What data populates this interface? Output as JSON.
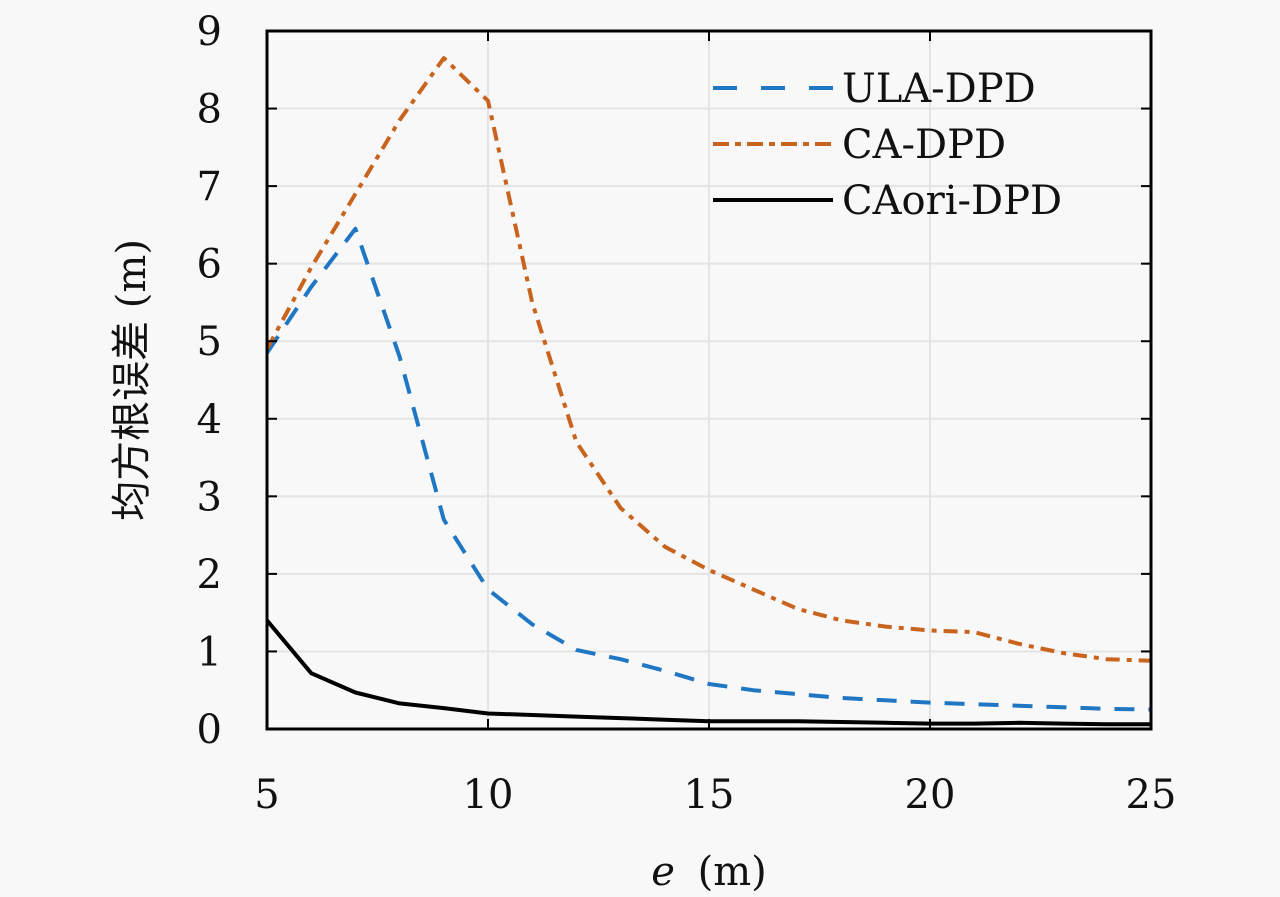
{
  "chart_data": {
    "type": "line",
    "title": "",
    "xlabel_italic": "e",
    "xlabel_unit": "(m)",
    "ylabel": "均方根误差 (m)",
    "xlim": [
      5,
      25
    ],
    "ylim": [
      0,
      9
    ],
    "xticks": [
      5,
      10,
      15,
      20,
      25
    ],
    "yticks": [
      0,
      1,
      2,
      3,
      4,
      5,
      6,
      7,
      8,
      9
    ],
    "grid": true,
    "legend_position": "top-right",
    "x": [
      5,
      6,
      7,
      8,
      9,
      10,
      11,
      12,
      13,
      14,
      15,
      16,
      17,
      18,
      19,
      20,
      21,
      22,
      23,
      24,
      25
    ],
    "series": [
      {
        "name": "ULA-DPD",
        "style": "dashed",
        "color": "#1f77c4",
        "values": [
          4.85,
          5.7,
          6.45,
          4.8,
          2.7,
          1.8,
          1.35,
          1.02,
          0.9,
          0.75,
          0.58,
          0.5,
          0.45,
          0.4,
          0.37,
          0.34,
          0.32,
          0.3,
          0.28,
          0.26,
          0.25
        ]
      },
      {
        "name": "CA-DPD",
        "style": "dashdot",
        "color": "#c8641e",
        "values": [
          4.9,
          5.95,
          6.9,
          7.85,
          8.65,
          8.1,
          5.5,
          3.7,
          2.85,
          2.35,
          2.05,
          1.8,
          1.55,
          1.4,
          1.32,
          1.27,
          1.25,
          1.1,
          0.98,
          0.9,
          0.88
        ]
      },
      {
        "name": "CAori-DPD",
        "style": "solid",
        "color": "#000000",
        "values": [
          1.4,
          0.72,
          0.47,
          0.33,
          0.27,
          0.2,
          0.18,
          0.16,
          0.14,
          0.12,
          0.1,
          0.1,
          0.1,
          0.09,
          0.08,
          0.07,
          0.07,
          0.08,
          0.07,
          0.06,
          0.06
        ]
      }
    ]
  }
}
